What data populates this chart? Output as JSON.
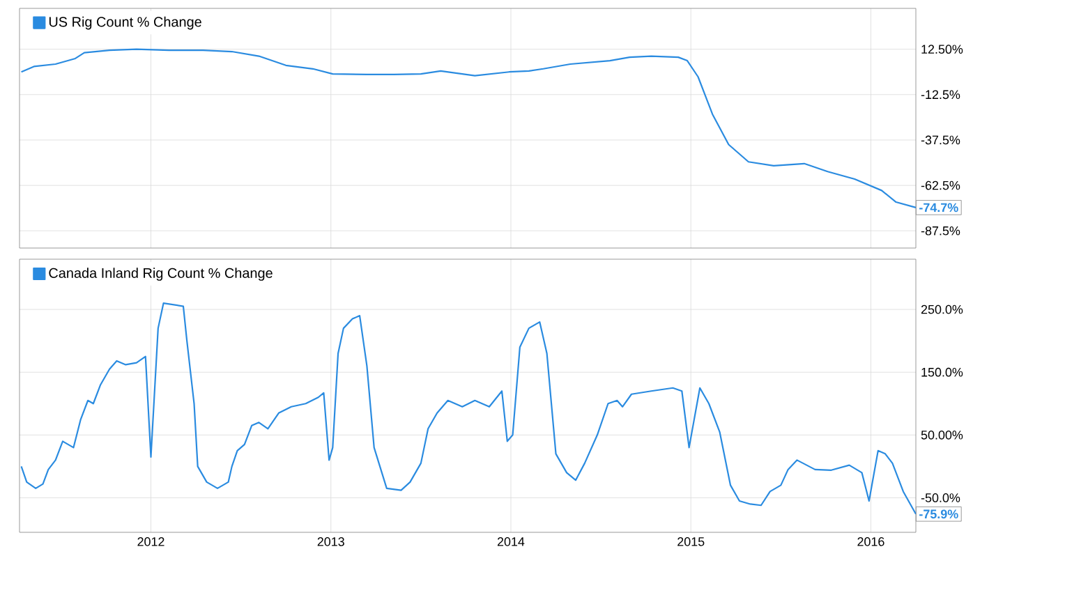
{
  "chart_data": [
    {
      "type": "line",
      "grid": true,
      "legend": "top left",
      "tick_labels": "y",
      "xlim": [
        2011.27,
        2016.25
      ],
      "ylim": [
        -97,
        35
      ],
      "xticks": [
        2012,
        2013,
        2014,
        2015,
        2016
      ],
      "yticks": [
        {
          "value": 12.5,
          "label": "12.50%"
        },
        {
          "value": -12.5,
          "label": "-12.5%"
        },
        {
          "value": -37.5,
          "label": "-37.5%"
        },
        {
          "value": -62.5,
          "label": "-62.5%"
        },
        {
          "value": -87.5,
          "label": "-87.5%"
        }
      ],
      "x": [
        2011.28,
        2011.35,
        2011.47,
        2011.58,
        2011.63,
        2011.77,
        2011.92,
        2012.1,
        2012.29,
        2012.45,
        2012.6,
        2012.75,
        2012.9,
        2013.01,
        2013.2,
        2013.35,
        2013.5,
        2013.61,
        2013.8,
        2013.99,
        2014.1,
        2014.18,
        2014.33,
        2014.55,
        2014.66,
        2014.78,
        2014.93,
        2014.98,
        2015.04,
        2015.12,
        2015.21,
        2015.32,
        2015.46,
        2015.63,
        2015.76,
        2015.91,
        2016.06,
        2016.14,
        2016.25
      ],
      "series": [
        {
          "name": "US Rig Count % Change",
          "color": "#2a8be0",
          "values": [
            0.0,
            3.0,
            4.3,
            7.4,
            10.6,
            11.9,
            12.5,
            11.9,
            11.9,
            11.2,
            8.7,
            3.6,
            1.7,
            -1.1,
            -1.4,
            -1.4,
            -1.1,
            0.5,
            -2.1,
            0.0,
            0.5,
            1.7,
            4.3,
            6.2,
            8.1,
            8.7,
            8.1,
            6.2,
            -2.7,
            -23.3,
            -40.0,
            -49.5,
            -51.7,
            -50.5,
            -54.9,
            -59.0,
            -65.3,
            -71.7,
            -74.7
          ],
          "value_labels": [
            null,
            null,
            null,
            null,
            null,
            null,
            null,
            null,
            null,
            null,
            null,
            null,
            null,
            null,
            null,
            null,
            null,
            null,
            null,
            null,
            null,
            null,
            null,
            null,
            null,
            null,
            null,
            null,
            null,
            null,
            null,
            null,
            null,
            null,
            null,
            null,
            null,
            null,
            "-74.7%"
          ]
        }
      ]
    },
    {
      "type": "line",
      "grid": true,
      "legend": "top left",
      "xlim": [
        2011.27,
        2016.25
      ],
      "ylim": [
        -105,
        330
      ],
      "xticks": [
        2012,
        2013,
        2014,
        2015,
        2016
      ],
      "yticks": [
        {
          "value": 250,
          "label": "250.0%"
        },
        {
          "value": 150,
          "label": "150.0%"
        },
        {
          "value": 50,
          "label": "50.00%"
        },
        {
          "value": -50,
          "label": "-50.0%"
        }
      ],
      "x": [
        2011.28,
        2011.31,
        2011.36,
        2011.4,
        2011.43,
        2011.47,
        2011.51,
        2011.57,
        2011.61,
        2011.65,
        2011.68,
        2011.72,
        2011.77,
        2011.81,
        2011.86,
        2011.92,
        2011.97,
        2012.0,
        2012.04,
        2012.07,
        2012.18,
        2012.2,
        2012.24,
        2012.26,
        2012.31,
        2012.37,
        2012.43,
        2012.45,
        2012.48,
        2012.52,
        2012.56,
        2012.6,
        2012.65,
        2012.71,
        2012.78,
        2012.86,
        2012.93,
        2012.96,
        2012.99,
        2013.01,
        2013.04,
        2013.07,
        2013.12,
        2013.16,
        2013.2,
        2013.24,
        2013.31,
        2013.39,
        2013.44,
        2013.5,
        2013.54,
        2013.59,
        2013.65,
        2013.73,
        2013.8,
        2013.88,
        2013.95,
        2013.98,
        2014.01,
        2014.05,
        2014.1,
        2014.16,
        2014.2,
        2014.25,
        2014.31,
        2014.36,
        2014.41,
        2014.48,
        2014.54,
        2014.59,
        2014.62,
        2014.67,
        2014.78,
        2014.9,
        2014.95,
        2014.99,
        2015.05,
        2015.1,
        2015.16,
        2015.22,
        2015.27,
        2015.33,
        2015.39,
        2015.44,
        2015.5,
        2015.54,
        2015.59,
        2015.69,
        2015.78,
        2015.88,
        2015.95,
        2015.99,
        2016.04,
        2016.08,
        2016.12,
        2016.18,
        2016.25
      ],
      "series": [
        {
          "name": "Canada Inland Rig Count % Change",
          "color": "#2a8be0",
          "values": [
            0,
            -25,
            -35,
            -28,
            -5,
            10,
            40,
            30,
            75,
            105,
            100,
            130,
            155,
            168,
            162,
            165,
            175,
            15,
            220,
            260,
            255,
            200,
            100,
            0,
            -25,
            -35,
            -25,
            0,
            25,
            35,
            65,
            70,
            60,
            85,
            95,
            100,
            110,
            117,
            10,
            30,
            180,
            220,
            235,
            240,
            160,
            30,
            -35,
            -38,
            -25,
            5,
            60,
            85,
            105,
            95,
            105,
            95,
            120,
            40,
            50,
            190,
            220,
            230,
            180,
            20,
            -10,
            -22,
            5,
            50,
            100,
            105,
            95,
            115,
            120,
            125,
            120,
            30,
            125,
            100,
            55,
            -30,
            -55,
            -60,
            -62,
            -40,
            -30,
            -5,
            10,
            -5,
            -6,
            2,
            -10,
            -55,
            25,
            20,
            5,
            -40,
            -75.9
          ],
          "value_labels": [
            null,
            null,
            null,
            null,
            null,
            null,
            null,
            null,
            null,
            null,
            null,
            null,
            null,
            null,
            null,
            null,
            null,
            null,
            null,
            null,
            null,
            null,
            null,
            null,
            null,
            null,
            null,
            null,
            null,
            null,
            null,
            null,
            null,
            null,
            null,
            null,
            null,
            null,
            null,
            null,
            null,
            null,
            null,
            null,
            null,
            null,
            null,
            null,
            null,
            null,
            null,
            null,
            null,
            null,
            null,
            null,
            null,
            null,
            null,
            null,
            null,
            null,
            null,
            null,
            null,
            null,
            null,
            null,
            null,
            null,
            null,
            null,
            null,
            null,
            null,
            null,
            null,
            null,
            null,
            null,
            null,
            null,
            null,
            null,
            null,
            null,
            null,
            null,
            null,
            null,
            null,
            null,
            null,
            null,
            null,
            null,
            "-75.9%"
          ]
        }
      ]
    }
  ]
}
